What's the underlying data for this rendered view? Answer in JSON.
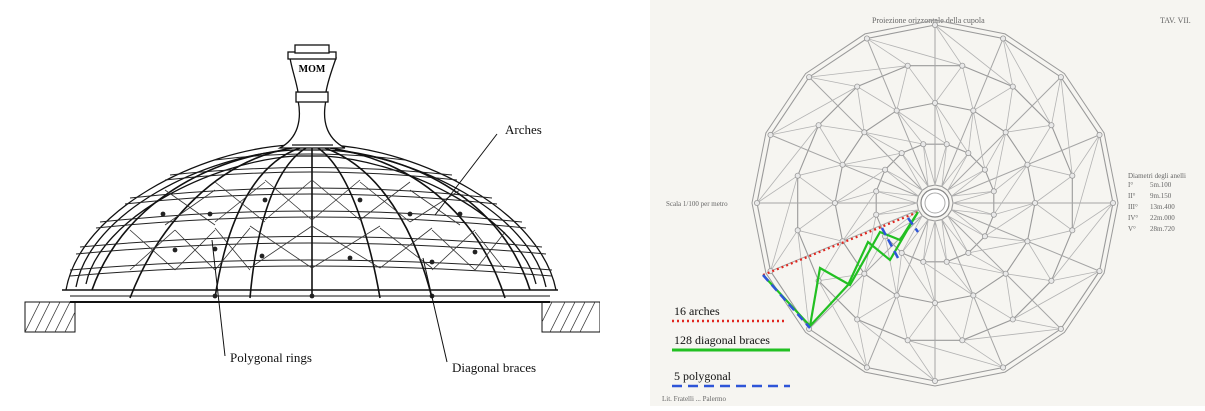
{
  "left_labels": {
    "arches": "Arches",
    "polygonal_rings": "Polygonal rings",
    "diagonal_braces": "Diagonal braces",
    "lantern_text": "MOM"
  },
  "plate": {
    "title": "Proiezione orizzontale della cupola",
    "plate_number": "TAV. VII.",
    "scale": "Scala 1/100 per metro",
    "diameters_title": "Diametri degli anelli",
    "diameters": [
      {
        "ring": "I°",
        "value": "5m.100"
      },
      {
        "ring": "II°",
        "value": "9m.150"
      },
      {
        "ring": "III°",
        "value": "13m.400"
      },
      {
        "ring": "IV°",
        "value": "22m.000"
      },
      {
        "ring": "V°",
        "value": "28m.720"
      }
    ],
    "footer": "Lit. Fratelli ... Palermo"
  },
  "legend": [
    {
      "label": "16 arches",
      "color": "#e0261f",
      "style": "dotted"
    },
    {
      "label": "128 diagonal braces",
      "color": "#22c022",
      "style": "solid"
    },
    {
      "label": "5 polygonal",
      "color": "#2e55d8",
      "style": "dashed"
    }
  ]
}
